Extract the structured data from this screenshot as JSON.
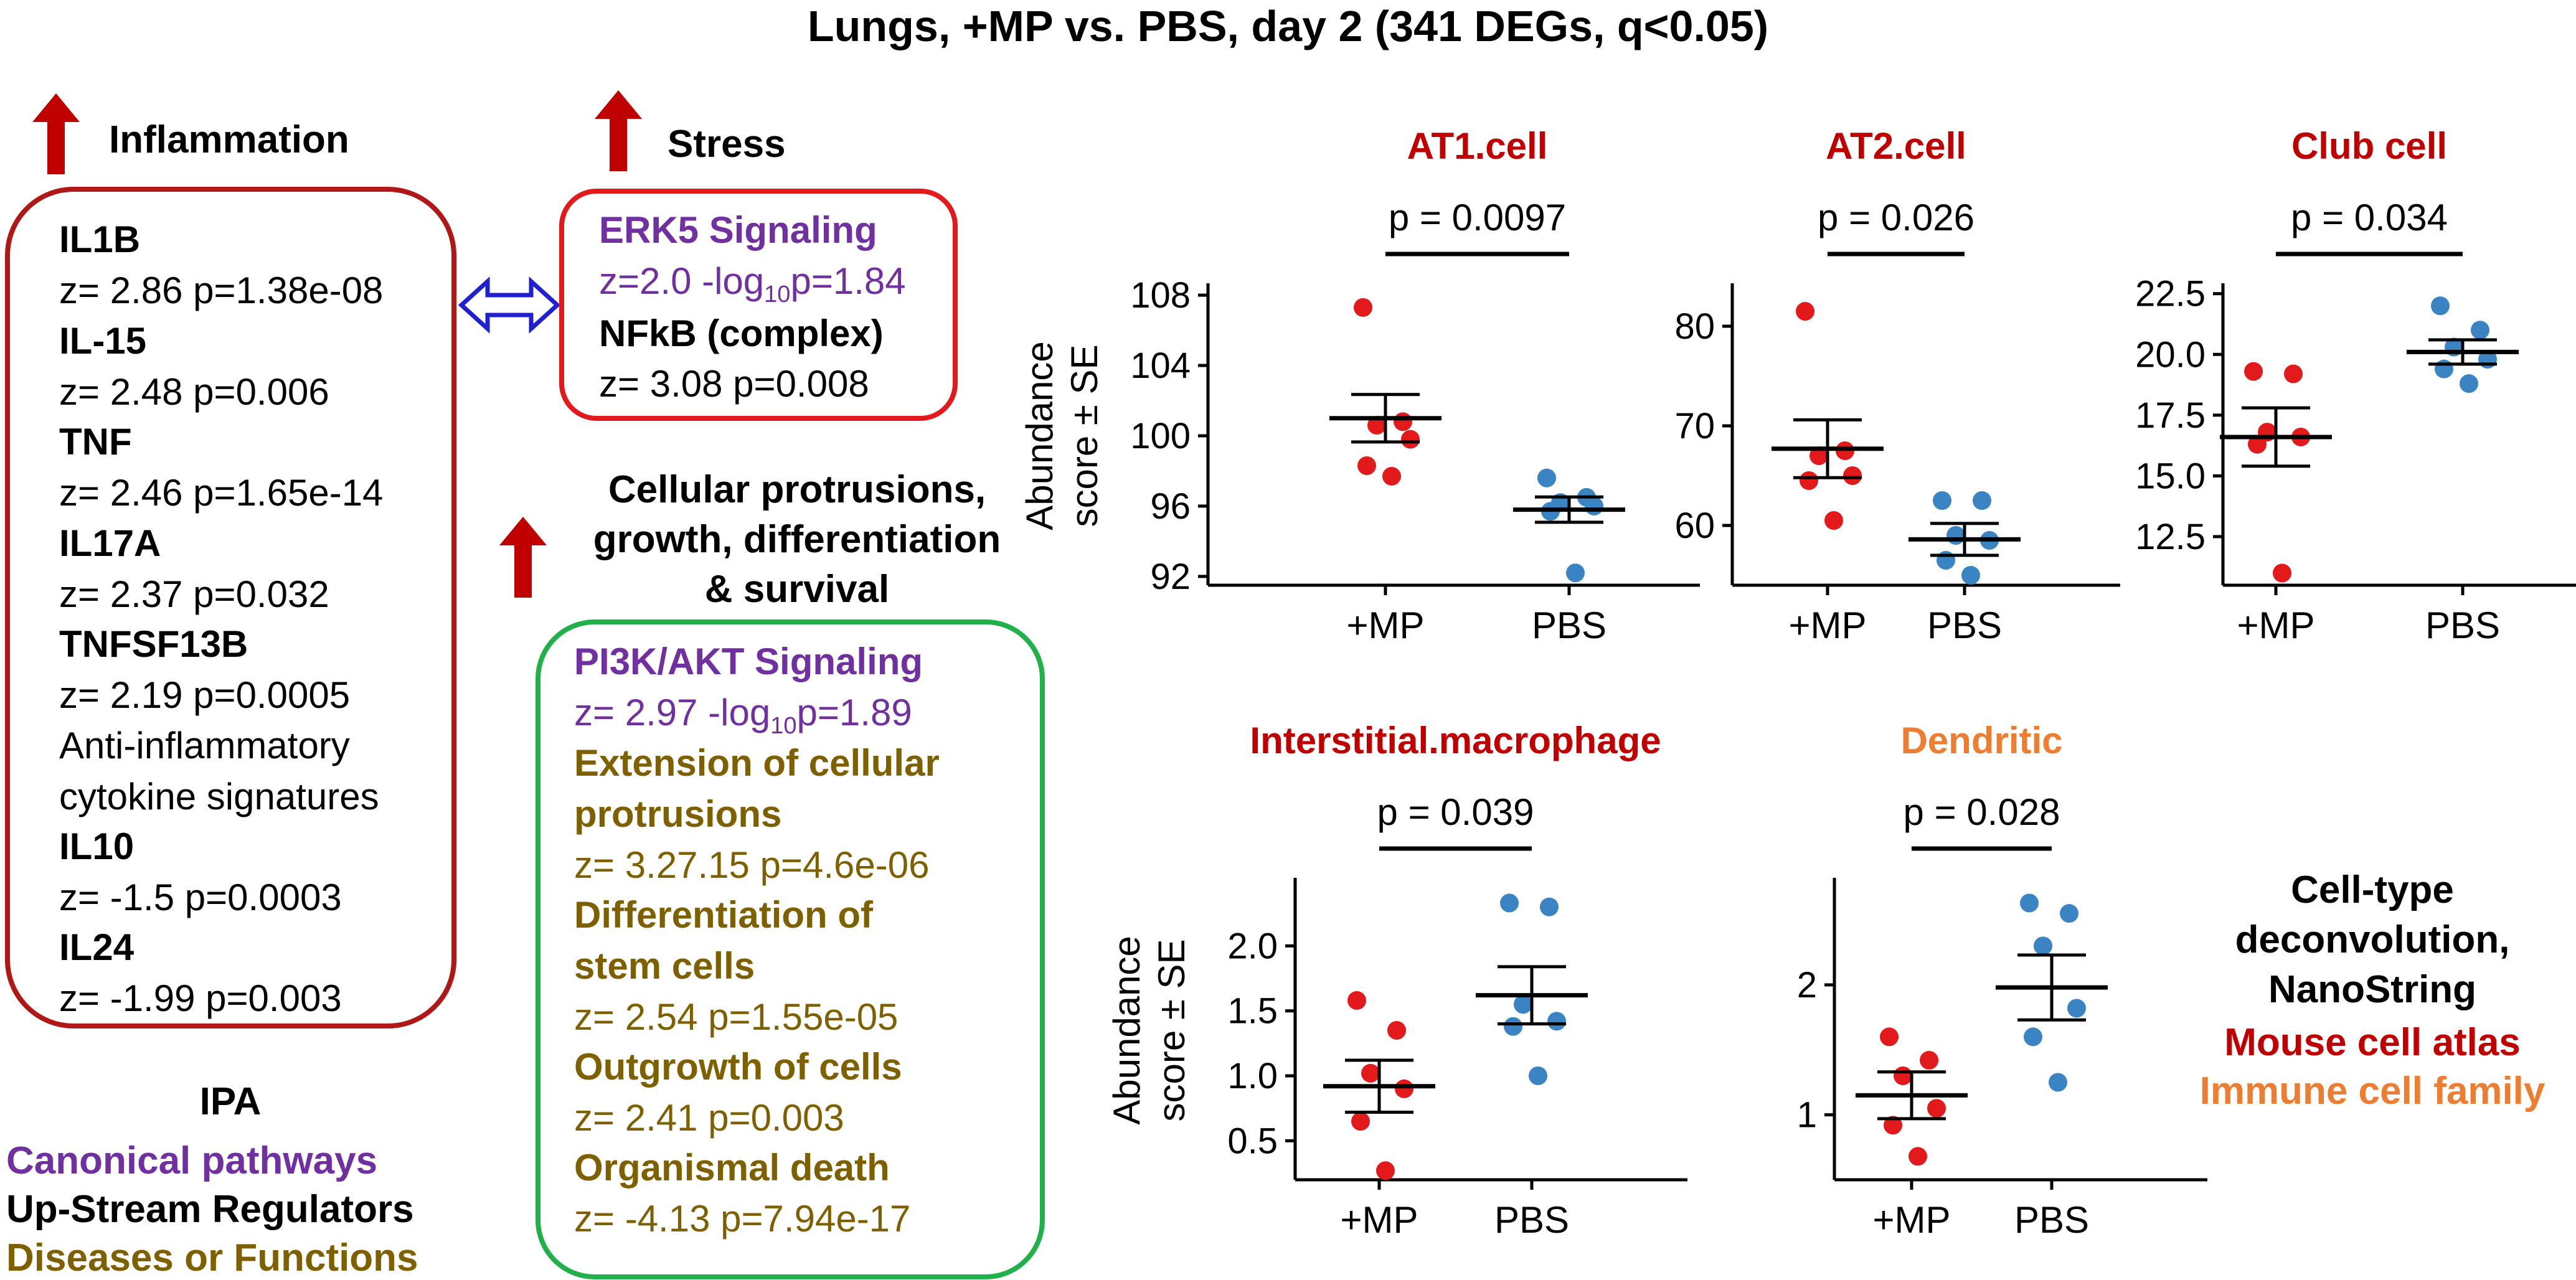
{
  "title": "Lungs, +MP vs. PBS, day 2 (341 DEGs, q<0.05)",
  "colors": {
    "red": "#c00000",
    "dark_red": "#b01818",
    "purple": "#7030a0",
    "olive": "#7f6000",
    "green": "#22b04b",
    "blue": "#2020d0",
    "orange": "#ed7d31",
    "mp_point": "#e31a1c",
    "pbs_point": "#3a84c4"
  },
  "inflammation": {
    "header": "Inflammation",
    "items": [
      {
        "name": "IL1B",
        "stat": "z= 2.86 p=1.38e-08"
      },
      {
        "name": "IL-15",
        "stat": "z= 2.48  p=0.006"
      },
      {
        "name": "TNF",
        "stat": "z= 2.46 p=1.65e-14"
      },
      {
        "name": "IL17A",
        "stat": "z= 2.37 p=0.032"
      },
      {
        "name": "TNFSF13B",
        "stat": "z= 2.19  p=0.0005"
      }
    ],
    "anti_line1": "Anti-inflammatory",
    "anti_line2": "cytokine signatures",
    "anti_items": [
      {
        "name": "IL10",
        "stat": "z= -1.5 p=0.0003"
      },
      {
        "name": "IL24",
        "stat": "z= -1.99 p=0.003"
      }
    ]
  },
  "stress": {
    "header": "Stress",
    "pathway": "ERK5 Signaling",
    "pathway_stat_prefix": "z=2.0 -log",
    "pathway_stat_sub": "10",
    "pathway_stat_suffix": "p=1.84",
    "regulator": "NFkB (complex)",
    "regulator_stat": "z= 3.08 p=0.008"
  },
  "cellular": {
    "header_lines": [
      "Cellular protrusions,",
      "growth, differentiation",
      "& survival"
    ],
    "pathway": "PI3K/AKT Signaling",
    "pathway_stat_prefix": "z= 2.97 -log",
    "pathway_stat_sub": "10",
    "pathway_stat_suffix": "p=1.89",
    "functions": [
      {
        "lines": [
          "Extension of cellular",
          "protrusions"
        ],
        "stat": "z= 3.27.15  p=4.6e-06"
      },
      {
        "lines": [
          "Differentiation of",
          "stem cells"
        ],
        "stat": "z= 2.54  p=1.55e-05"
      },
      {
        "lines": [
          "Outgrowth of cells"
        ],
        "stat": "z= 2.41  p=0.003"
      },
      {
        "lines": [
          "Organismal death"
        ],
        "stat": "z= -4.13  p=7.94e-17"
      }
    ]
  },
  "ipa_legend": {
    "title": "IPA",
    "canonical": "Canonical pathways",
    "upstream": "Up-Stream Regulators",
    "diseases": "Diseases or Functions"
  },
  "deconv_legend": {
    "line1": "Cell-type",
    "line2": "deconvolution,",
    "line3": "NanoString",
    "mouse": "Mouse cell atlas",
    "immune": "Immune cell family"
  },
  "chart_data": [
    {
      "type": "scatter",
      "title": "AT1.cell",
      "title_color": "#c00000",
      "pvalue": "p = 0.0097",
      "ylabel": [
        "Abundance",
        "score ± SE"
      ],
      "categories": [
        "+MP",
        "PBS"
      ],
      "ylim": [
        91.5,
        108.5
      ],
      "yticks": [
        92,
        96,
        100,
        104,
        108
      ],
      "ytick_labels": [
        "92",
        "96",
        "100",
        "104",
        "108"
      ],
      "series": [
        {
          "name": "+MP",
          "values": [
            107.3,
            100.8,
            100.6,
            99.8,
            98.3,
            97.7
          ],
          "mean": 101.0,
          "se": 1.35
        },
        {
          "name": "PBS",
          "values": [
            97.6,
            96.5,
            96.2,
            96.0,
            95.7,
            92.2
          ],
          "mean": 95.8,
          "se": 0.72
        }
      ]
    },
    {
      "type": "scatter",
      "title": "AT2.cell",
      "title_color": "#c00000",
      "pvalue": "p = 0.026",
      "ylabel": null,
      "categories": [
        "+MP",
        "PBS"
      ],
      "ylim": [
        54,
        84
      ],
      "yticks": [
        60,
        70,
        80
      ],
      "ytick_labels": [
        "60",
        "70",
        "80"
      ],
      "series": [
        {
          "name": "+MP",
          "values": [
            81.5,
            67.5,
            67.0,
            65.0,
            64.5,
            60.5
          ],
          "mean": 67.7,
          "se": 2.9
        },
        {
          "name": "PBS",
          "values": [
            62.5,
            62.5,
            59.0,
            58.5,
            56.5,
            55.0
          ],
          "mean": 58.6,
          "se": 1.6
        }
      ]
    },
    {
      "type": "scatter",
      "title": "Club cell",
      "title_color": "#c00000",
      "pvalue": "p = 0.034",
      "ylabel": null,
      "categories": [
        "+MP",
        "PBS"
      ],
      "ylim": [
        10.5,
        22.8
      ],
      "yticks": [
        12.5,
        15.0,
        17.5,
        20.0,
        22.5
      ],
      "ytick_labels": [
        "12.5",
        "15.0",
        "17.5",
        "20.0",
        "22.5"
      ],
      "series": [
        {
          "name": "+MP",
          "values": [
            19.3,
            19.2,
            16.8,
            16.6,
            16.3,
            11.0
          ],
          "mean": 16.6,
          "se": 1.2
        },
        {
          "name": "PBS",
          "values": [
            22.0,
            21.0,
            20.3,
            19.8,
            19.4,
            18.8
          ],
          "mean": 20.1,
          "se": 0.5
        }
      ]
    },
    {
      "type": "scatter",
      "title": "Interstitial.macrophage",
      "title_color": "#c00000",
      "pvalue": "p = 0.039",
      "ylabel": [
        "Abundance",
        "score ± SE"
      ],
      "categories": [
        "+MP",
        "PBS"
      ],
      "ylim": [
        0.2,
        2.5
      ],
      "yticks": [
        0.5,
        1.0,
        1.5,
        2.0
      ],
      "ytick_labels": [
        "0.5",
        "1.0",
        "1.5",
        "2.0"
      ],
      "series": [
        {
          "name": "+MP",
          "values": [
            1.58,
            1.35,
            1.02,
            0.9,
            0.65,
            0.27
          ],
          "mean": 0.92,
          "se": 0.2
        },
        {
          "name": "PBS",
          "values": [
            2.33,
            2.3,
            1.55,
            1.42,
            1.38,
            1.0
          ],
          "mean": 1.62,
          "se": 0.22
        }
      ]
    },
    {
      "type": "scatter",
      "title": "Dendritic",
      "title_color": "#ed7d31",
      "pvalue": "p = 0.028",
      "ylabel": null,
      "categories": [
        "+MP",
        "PBS"
      ],
      "ylim": [
        0.5,
        2.8
      ],
      "yticks": [
        1,
        2
      ],
      "ytick_labels": [
        "1",
        "2"
      ],
      "series": [
        {
          "name": "+MP",
          "values": [
            1.6,
            1.42,
            1.3,
            1.05,
            0.92,
            0.68
          ],
          "mean": 1.15,
          "se": 0.18
        },
        {
          "name": "PBS",
          "values": [
            2.63,
            2.55,
            2.3,
            1.82,
            1.6,
            1.25
          ],
          "mean": 1.98,
          "se": 0.25
        }
      ]
    }
  ]
}
